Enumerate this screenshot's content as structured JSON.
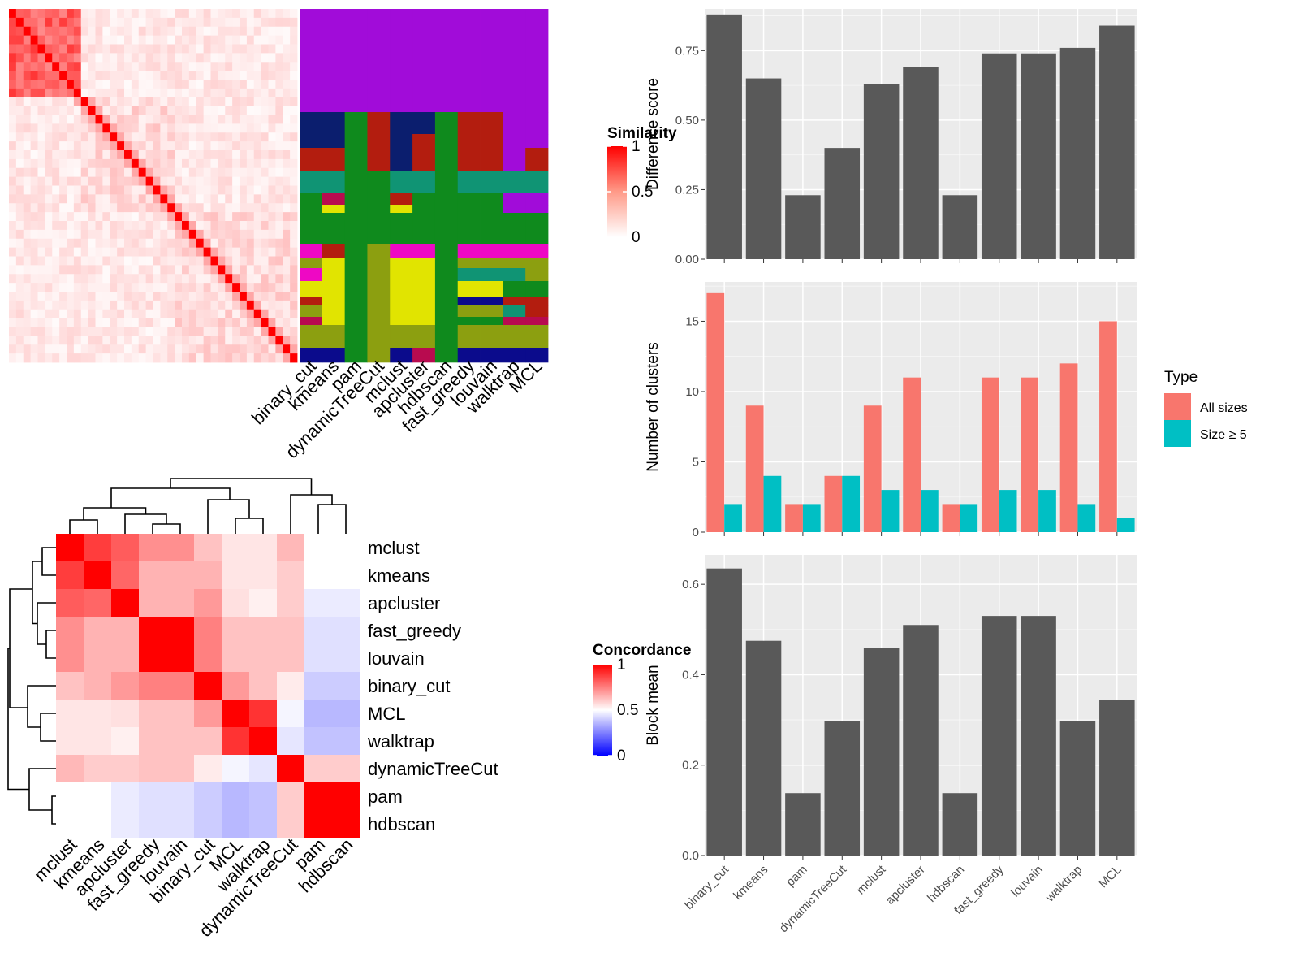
{
  "chart_data": [
    {
      "type": "heatmap",
      "panel": "similarity-heatmap",
      "legend": {
        "title": "Similarity",
        "ticks": [
          "1",
          "0.5",
          "0"
        ]
      },
      "size": 40
    },
    {
      "type": "heatmap",
      "panel": "membership-heatmap",
      "methods": [
        "binary_cut",
        "kmeans",
        "pam",
        "dynamicTreeCut",
        "mclust",
        "apcluster",
        "hdbscan",
        "fast_greedy",
        "louvain",
        "walktrap",
        "MCL"
      ],
      "colors": [
        "#a10cd9",
        "#0b1e6e",
        "#b31d0f",
        "#0f8a1d",
        "#e1e401",
        "#8c9f10",
        "#109474",
        "#ee08c4",
        "#0b0b8c",
        "#b80b4f"
      ]
    },
    {
      "type": "heatmap",
      "panel": "concordance-heatmap",
      "legend": {
        "title": "Concordance",
        "ticks": [
          "1",
          "0.5",
          "0"
        ]
      },
      "rows": [
        "mclust",
        "kmeans",
        "apcluster",
        "fast_greedy",
        "louvain",
        "binary_cut",
        "MCL",
        "walktrap",
        "dynamicTreeCut",
        "pam",
        "hdbscan"
      ],
      "cols": [
        "mclust",
        "kmeans",
        "apcluster",
        "fast_greedy",
        "louvain",
        "binary_cut",
        "MCL",
        "walktrap",
        "dynamicTreeCut",
        "pam",
        "hdbscan"
      ],
      "values": [
        [
          1.0,
          0.88,
          0.82,
          0.72,
          0.72,
          0.62,
          0.55,
          0.55,
          0.64,
          0.5,
          0.5
        ],
        [
          0.88,
          1.0,
          0.8,
          0.65,
          0.65,
          0.65,
          0.55,
          0.55,
          0.6,
          0.5,
          0.5
        ],
        [
          0.82,
          0.8,
          1.0,
          0.65,
          0.65,
          0.7,
          0.56,
          0.53,
          0.6,
          0.46,
          0.46
        ],
        [
          0.72,
          0.65,
          0.65,
          1.0,
          1.0,
          0.75,
          0.62,
          0.62,
          0.62,
          0.44,
          0.44
        ],
        [
          0.72,
          0.65,
          0.65,
          1.0,
          1.0,
          0.75,
          0.62,
          0.62,
          0.62,
          0.44,
          0.44
        ],
        [
          0.62,
          0.65,
          0.7,
          0.75,
          0.75,
          1.0,
          0.7,
          0.62,
          0.54,
          0.4,
          0.4
        ],
        [
          0.55,
          0.55,
          0.56,
          0.62,
          0.62,
          0.7,
          1.0,
          0.9,
          0.48,
          0.36,
          0.36
        ],
        [
          0.55,
          0.55,
          0.53,
          0.62,
          0.62,
          0.62,
          0.9,
          1.0,
          0.45,
          0.38,
          0.38
        ],
        [
          0.64,
          0.6,
          0.6,
          0.62,
          0.62,
          0.54,
          0.48,
          0.45,
          1.0,
          0.6,
          0.6
        ],
        [
          0.5,
          0.5,
          0.46,
          0.44,
          0.44,
          0.4,
          0.36,
          0.38,
          0.6,
          1.0,
          1.0
        ],
        [
          0.5,
          0.5,
          0.46,
          0.44,
          0.44,
          0.4,
          0.36,
          0.38,
          0.6,
          1.0,
          1.0
        ]
      ]
    },
    {
      "type": "bar",
      "panel": "difference-score",
      "categories": [
        "binary_cut",
        "kmeans",
        "pam",
        "dynamicTreeCut",
        "mclust",
        "apcluster",
        "hdbscan",
        "fast_greedy",
        "louvain",
        "walktrap",
        "MCL"
      ],
      "values": [
        0.88,
        0.65,
        0.23,
        0.4,
        0.63,
        0.69,
        0.23,
        0.74,
        0.74,
        0.76,
        0.84
      ],
      "ylabel": "Difference score",
      "ylim": [
        0,
        0.9
      ],
      "yticks": [
        "0.00",
        "0.25",
        "0.50",
        "0.75"
      ],
      "bar_color": "#595959"
    },
    {
      "type": "bar",
      "panel": "number-of-clusters",
      "categories": [
        "binary_cut",
        "kmeans",
        "pam",
        "dynamicTreeCut",
        "mclust",
        "apcluster",
        "hdbscan",
        "fast_greedy",
        "louvain",
        "walktrap",
        "MCL"
      ],
      "series": [
        {
          "name": "All sizes",
          "color": "#f8766d",
          "values": [
            17,
            9,
            2,
            4,
            9,
            11,
            2,
            11,
            11,
            12,
            15
          ]
        },
        {
          "name": "Size ≥ 5",
          "color": "#00bfc4",
          "values": [
            2,
            4,
            2,
            4,
            3,
            3,
            2,
            3,
            3,
            2,
            1
          ]
        }
      ],
      "ylabel": "Number of clusters",
      "ylim": [
        0,
        17.8
      ],
      "yticks": [
        "0",
        "5",
        "10",
        "15"
      ],
      "legend": {
        "title": "Type",
        "position": "right"
      }
    },
    {
      "type": "bar",
      "panel": "block-mean",
      "categories": [
        "binary_cut",
        "kmeans",
        "pam",
        "dynamicTreeCut",
        "mclust",
        "apcluster",
        "hdbscan",
        "fast_greedy",
        "louvain",
        "walktrap",
        "MCL"
      ],
      "values": [
        0.635,
        0.475,
        0.138,
        0.298,
        0.46,
        0.51,
        0.138,
        0.53,
        0.53,
        0.298,
        0.345
      ],
      "ylabel": "Block mean",
      "ylim": [
        0,
        0.665
      ],
      "yticks": [
        "0.0",
        "0.2",
        "0.4",
        "0.6"
      ],
      "bar_color": "#595959"
    }
  ]
}
